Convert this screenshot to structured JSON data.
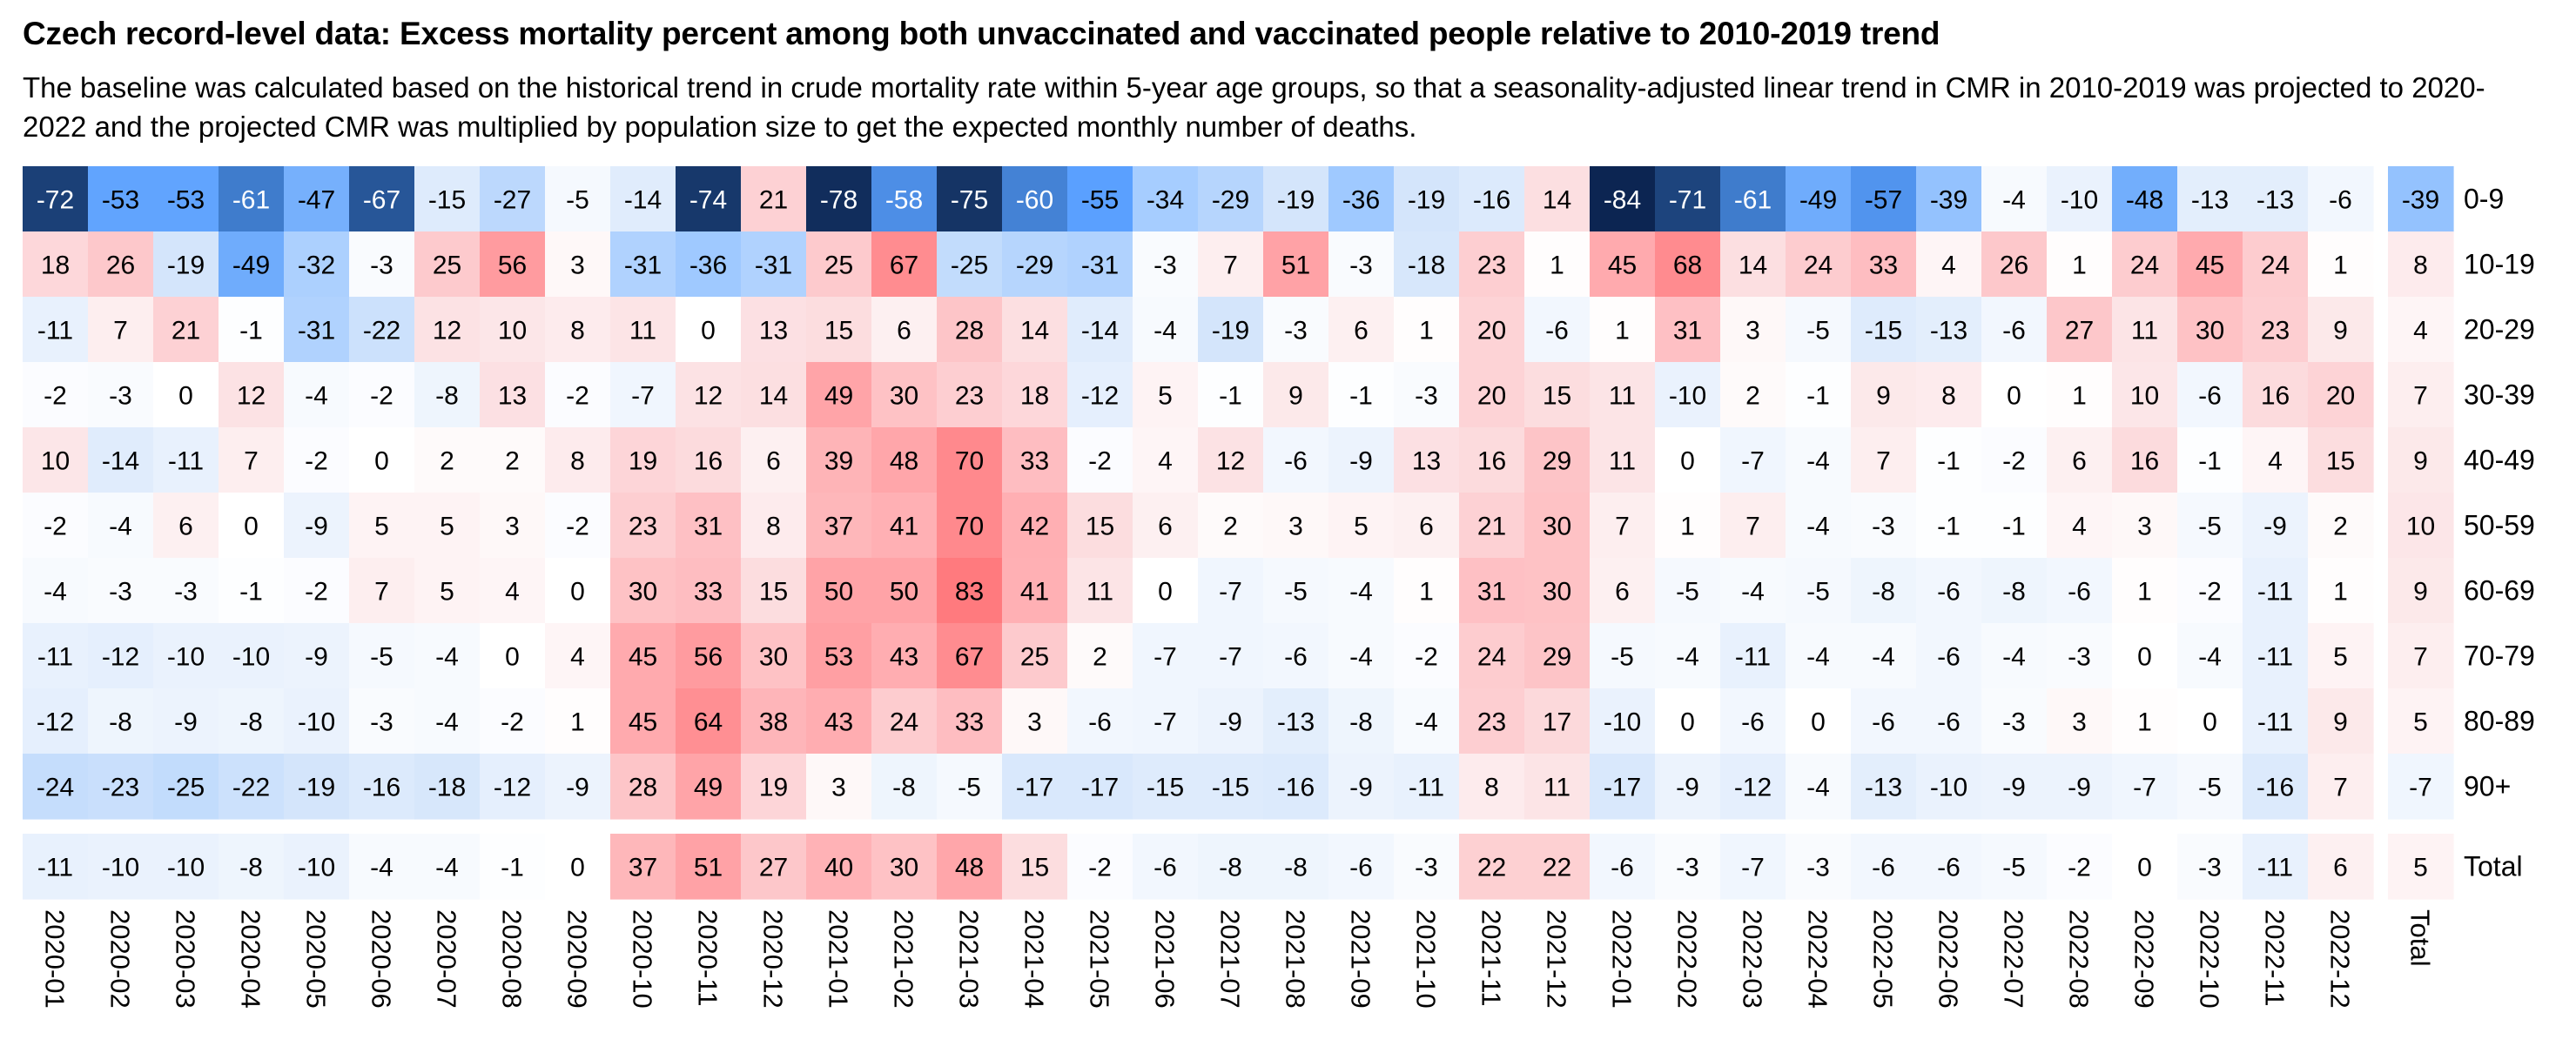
{
  "chart_data": {
    "type": "heatmap",
    "title": "Czech record-level data: Excess mortality percent among both unvaccinated and vaccinated people relative to 2010-2019 trend",
    "subtitle": "The baseline was calculated based on the historical trend in crude mortality rate within 5-year age groups, so that a seasonality-adjusted linear trend in CMR in 2010-2019 was projected to 2020-2022 and the projected CMR was multiplied by population size to get the expected monthly number of deaths.",
    "xlabel": "",
    "ylabel": "",
    "columns": [
      "2020-01",
      "2020-02",
      "2020-03",
      "2020-04",
      "2020-05",
      "2020-06",
      "2020-07",
      "2020-08",
      "2020-09",
      "2020-10",
      "2020-11",
      "2020-12",
      "2021-01",
      "2021-02",
      "2021-03",
      "2021-04",
      "2021-05",
      "2021-06",
      "2021-07",
      "2021-08",
      "2021-09",
      "2021-10",
      "2021-11",
      "2021-12",
      "2022-01",
      "2022-02",
      "2022-03",
      "2022-04",
      "2022-05",
      "2022-06",
      "2022-07",
      "2022-08",
      "2022-09",
      "2022-10",
      "2022-11",
      "2022-12"
    ],
    "total_column_label": "Total",
    "rows": [
      "0-9",
      "10-19",
      "20-29",
      "30-39",
      "40-49",
      "50-59",
      "60-69",
      "70-79",
      "80-89",
      "90+"
    ],
    "total_row_label": "Total",
    "values": [
      [
        -72,
        -53,
        -53,
        -61,
        -47,
        -67,
        -15,
        -27,
        -5,
        -14,
        -74,
        21,
        -78,
        -58,
        -75,
        -60,
        -55,
        -34,
        -29,
        -19,
        -36,
        -19,
        -16,
        14,
        -84,
        -71,
        -61,
        -49,
        -57,
        -39,
        -4,
        -10,
        -48,
        -13,
        -13,
        -6
      ],
      [
        18,
        26,
        -19,
        -49,
        -32,
        -3,
        25,
        56,
        3,
        -31,
        -36,
        -31,
        25,
        67,
        -25,
        -29,
        -31,
        -3,
        7,
        51,
        -3,
        -18,
        23,
        1,
        45,
        68,
        14,
        24,
        33,
        4,
        26,
        1,
        24,
        45,
        24,
        1
      ],
      [
        -11,
        7,
        21,
        -1,
        -31,
        -22,
        12,
        10,
        8,
        11,
        0,
        13,
        15,
        6,
        28,
        14,
        -14,
        -4,
        -19,
        -3,
        6,
        1,
        20,
        -6,
        1,
        31,
        3,
        -5,
        -15,
        -13,
        -6,
        27,
        11,
        30,
        23,
        9
      ],
      [
        -2,
        -3,
        0,
        12,
        -4,
        -2,
        -8,
        13,
        -2,
        -7,
        12,
        14,
        49,
        30,
        23,
        18,
        -12,
        5,
        -1,
        9,
        -1,
        -3,
        20,
        15,
        11,
        -10,
        2,
        -1,
        9,
        8,
        0,
        1,
        10,
        -6,
        16,
        20
      ],
      [
        10,
        -14,
        -11,
        7,
        -2,
        0,
        2,
        2,
        8,
        19,
        16,
        6,
        39,
        48,
        70,
        33,
        -2,
        4,
        12,
        -6,
        -9,
        13,
        16,
        29,
        11,
        0,
        -7,
        -4,
        7,
        -1,
        -2,
        6,
        16,
        -1,
        4,
        15
      ],
      [
        -2,
        -4,
        6,
        0,
        -9,
        5,
        5,
        3,
        -2,
        23,
        31,
        8,
        37,
        41,
        70,
        42,
        15,
        6,
        2,
        3,
        5,
        6,
        21,
        30,
        7,
        1,
        7,
        -4,
        -3,
        -1,
        -1,
        4,
        3,
        -5,
        -9,
        2
      ],
      [
        -4,
        -3,
        -3,
        -1,
        -2,
        7,
        5,
        4,
        0,
        30,
        33,
        15,
        50,
        50,
        83,
        41,
        11,
        0,
        -7,
        -5,
        -4,
        1,
        31,
        30,
        6,
        -5,
        -4,
        -5,
        -8,
        -6,
        -8,
        -6,
        1,
        -2,
        -11,
        1
      ],
      [
        -11,
        -12,
        -10,
        -10,
        -9,
        -5,
        -4,
        0,
        4,
        45,
        56,
        30,
        53,
        43,
        67,
        25,
        2,
        -7,
        -7,
        -6,
        -4,
        -2,
        24,
        29,
        -5,
        -4,
        -11,
        -4,
        -4,
        -6,
        -4,
        -3,
        0,
        -4,
        -11,
        5
      ],
      [
        -12,
        -8,
        -9,
        -8,
        -10,
        -3,
        -4,
        -2,
        1,
        45,
        64,
        38,
        43,
        24,
        33,
        3,
        -6,
        -7,
        -9,
        -13,
        -8,
        -4,
        23,
        17,
        -10,
        0,
        -6,
        0,
        -6,
        -6,
        -3,
        3,
        1,
        0,
        -11,
        9
      ],
      [
        -24,
        -23,
        -25,
        -22,
        -19,
        -16,
        -18,
        -12,
        -9,
        28,
        49,
        19,
        3,
        -8,
        -5,
        -17,
        -17,
        -15,
        -15,
        -16,
        -9,
        -11,
        8,
        11,
        -17,
        -9,
        -12,
        -4,
        -13,
        -10,
        -9,
        -9,
        -7,
        -5,
        -16,
        7
      ]
    ],
    "row_totals": [
      -39,
      8,
      4,
      7,
      9,
      10,
      9,
      7,
      5,
      -7
    ],
    "column_totals": [
      -11,
      -10,
      -10,
      -8,
      -10,
      -4,
      -4,
      -1,
      0,
      37,
      51,
      27,
      40,
      30,
      48,
      15,
      -2,
      -6,
      -8,
      -8,
      -6,
      -3,
      22,
      22,
      -6,
      -3,
      -7,
      -3,
      -6,
      -6,
      -5,
      -2,
      0,
      -3,
      -11,
      6
    ],
    "grand_total": 5,
    "color_scale": {
      "negative_stops": [
        [
          0,
          "#ffffff"
        ],
        [
          -10,
          "#eaf2fd"
        ],
        [
          -20,
          "#d2e4fb"
        ],
        [
          -35,
          "#a3cbff"
        ],
        [
          -48,
          "#72aefc"
        ],
        [
          -55,
          "#5aa0ff"
        ],
        [
          -61,
          "#3f7ccc"
        ],
        [
          -68,
          "#23508f"
        ],
        [
          -76,
          "#13305f"
        ],
        [
          -85,
          "#0b2450"
        ]
      ],
      "positive_stops": [
        [
          0,
          "#ffffff"
        ],
        [
          10,
          "#fce6e8"
        ],
        [
          25,
          "#fdcacd"
        ],
        [
          45,
          "#ffaaae"
        ],
        [
          65,
          "#ff8e92"
        ],
        [
          85,
          "#ff787c"
        ]
      ],
      "light_text": "#ffffff",
      "dark_text": "#000000"
    },
    "grid": false,
    "legend": "none"
  }
}
